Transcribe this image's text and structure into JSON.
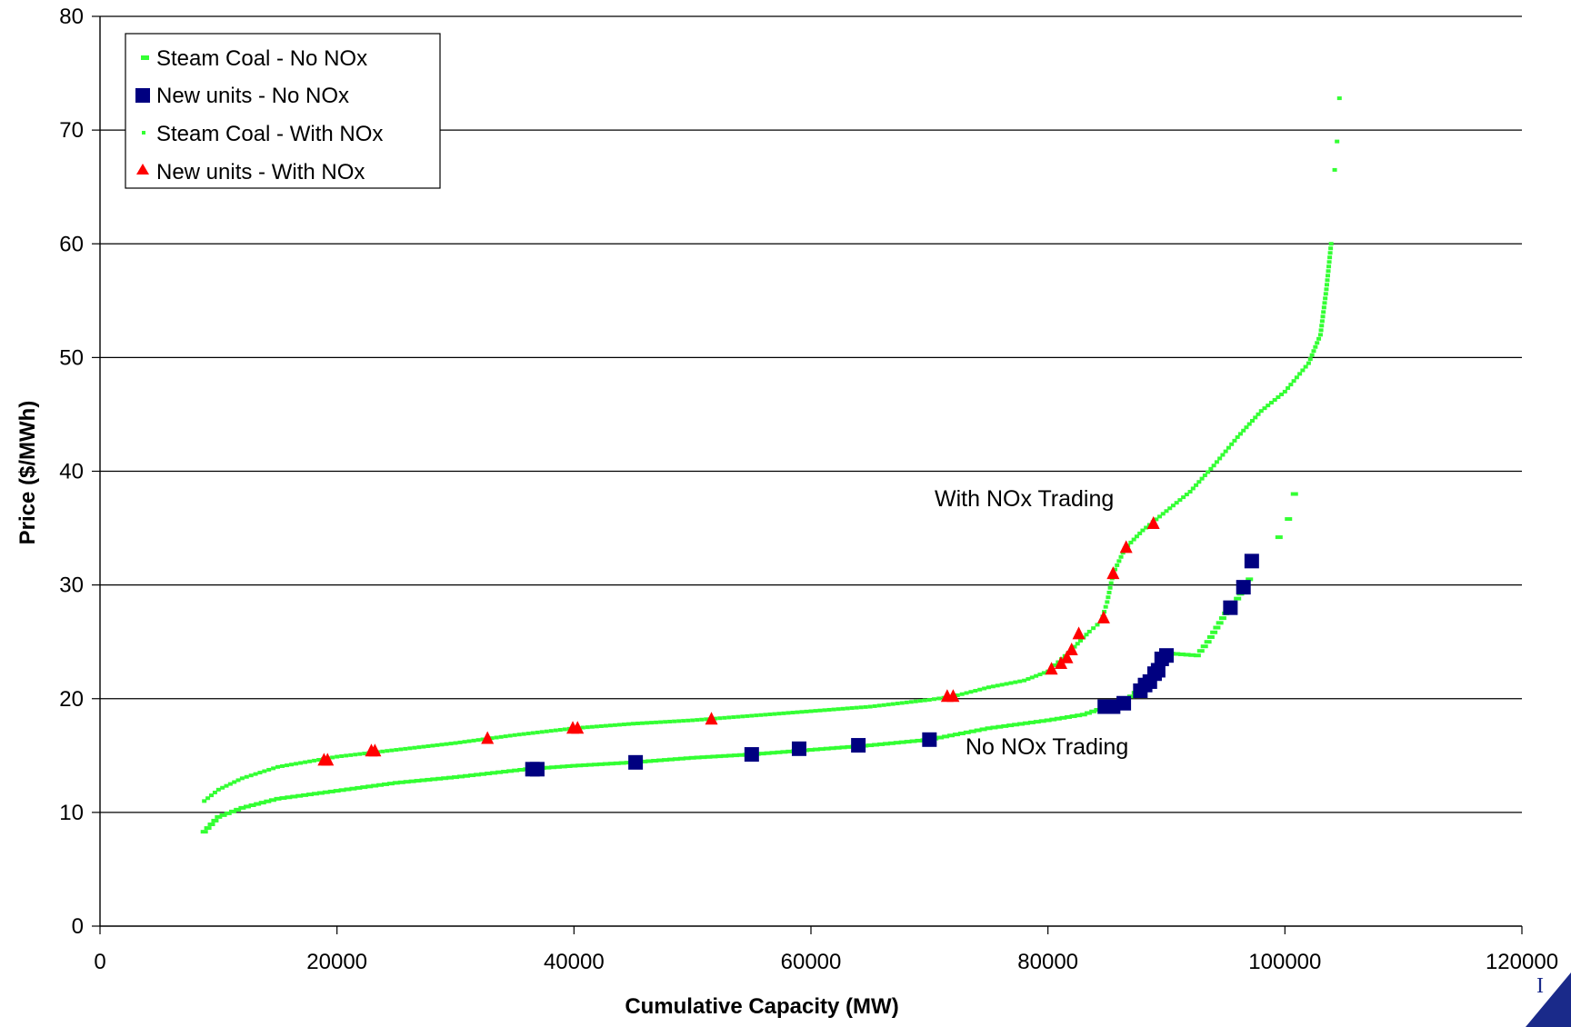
{
  "chart_data": {
    "type": "scatter",
    "title": "",
    "xlabel": "Cumulative Capacity (MW)",
    "ylabel": "Price ($/MWh)",
    "xlim": [
      0,
      120000
    ],
    "ylim": [
      0,
      80
    ],
    "x_ticks": [
      "0",
      "20000",
      "40000",
      "60000",
      "80000",
      "100000",
      "120000"
    ],
    "y_ticks": [
      "0",
      "10",
      "20",
      "30",
      "40",
      "50",
      "60",
      "70",
      "80"
    ],
    "grid": "horizontal",
    "legend_position": "top-left",
    "annotations": [
      {
        "text": "With NOx Trading",
        "x": 79000,
        "y": 37.5
      },
      {
        "text": "No NOx Trading",
        "x": 81000,
        "y": 15.8
      }
    ],
    "series": [
      {
        "name": "Steam Coal - No NOx",
        "marker": "dash",
        "color": "#33ff33",
        "curve": [
          [
            8800,
            8.3
          ],
          [
            10000,
            9.6
          ],
          [
            12000,
            10.4
          ],
          [
            15000,
            11.2
          ],
          [
            20000,
            11.9
          ],
          [
            25000,
            12.6
          ],
          [
            30000,
            13.1
          ],
          [
            36000,
            13.8
          ],
          [
            40000,
            14.1
          ],
          [
            45000,
            14.4
          ],
          [
            50000,
            14.8
          ],
          [
            55000,
            15.1
          ],
          [
            60000,
            15.5
          ],
          [
            65000,
            15.9
          ],
          [
            70000,
            16.4
          ],
          [
            75000,
            17.4
          ],
          [
            80000,
            18.1
          ],
          [
            83000,
            18.6
          ],
          [
            85000,
            19.3
          ],
          [
            87000,
            20.2
          ],
          [
            88500,
            21.5
          ],
          [
            89500,
            23.2
          ],
          [
            90000,
            24.0
          ],
          [
            92600,
            23.8
          ],
          [
            93500,
            25.0
          ],
          [
            95000,
            27.5
          ],
          [
            96000,
            28.8
          ],
          [
            97000,
            30.5
          ]
        ],
        "isolated_points": [
          [
            99500,
            34.2
          ],
          [
            100300,
            35.8
          ],
          [
            100800,
            38.0
          ]
        ]
      },
      {
        "name": "New units - No NOx",
        "marker": "square",
        "color": "#000080",
        "points": [
          [
            36500,
            13.8
          ],
          [
            36900,
            13.8
          ],
          [
            45200,
            14.4
          ],
          [
            55000,
            15.1
          ],
          [
            59000,
            15.6
          ],
          [
            64000,
            15.9
          ],
          [
            70000,
            16.4
          ],
          [
            84800,
            19.3
          ],
          [
            85500,
            19.3
          ],
          [
            86400,
            19.6
          ],
          [
            87800,
            20.7
          ],
          [
            88200,
            21.2
          ],
          [
            88600,
            21.5
          ],
          [
            89000,
            22.2
          ],
          [
            89300,
            22.5
          ],
          [
            89600,
            23.5
          ],
          [
            90000,
            23.8
          ],
          [
            95400,
            28.0
          ],
          [
            96500,
            29.8
          ],
          [
            97200,
            32.1
          ]
        ]
      },
      {
        "name": "Steam Coal - With NOx",
        "marker": "dot",
        "color": "#33ff33",
        "curve": [
          [
            8800,
            11.0
          ],
          [
            10000,
            12.0
          ],
          [
            12000,
            13.0
          ],
          [
            15000,
            14.0
          ],
          [
            20000,
            14.9
          ],
          [
            25000,
            15.5
          ],
          [
            30000,
            16.1
          ],
          [
            35000,
            16.8
          ],
          [
            40000,
            17.4
          ],
          [
            45000,
            17.8
          ],
          [
            50000,
            18.1
          ],
          [
            55000,
            18.5
          ],
          [
            60000,
            18.9
          ],
          [
            65000,
            19.3
          ],
          [
            70000,
            19.9
          ],
          [
            72000,
            20.2
          ],
          [
            75000,
            21.0
          ],
          [
            78000,
            21.6
          ],
          [
            80000,
            22.4
          ],
          [
            82000,
            24.3
          ],
          [
            83500,
            25.9
          ],
          [
            84500,
            26.8
          ],
          [
            85000,
            28.5
          ],
          [
            85500,
            31.0
          ],
          [
            86500,
            33.2
          ],
          [
            88000,
            34.8
          ],
          [
            90000,
            36.5
          ],
          [
            92000,
            38.2
          ],
          [
            94000,
            40.5
          ],
          [
            96000,
            43.0
          ],
          [
            98000,
            45.3
          ],
          [
            100000,
            47.0
          ],
          [
            102000,
            49.5
          ],
          [
            103000,
            52.0
          ],
          [
            103500,
            56.0
          ],
          [
            103900,
            60.0
          ]
        ],
        "isolated_points": [
          [
            104200,
            66.5
          ],
          [
            104400,
            69.0
          ],
          [
            104600,
            72.8
          ]
        ]
      },
      {
        "name": "New units - With NOx",
        "marker": "triangle",
        "color": "#ff0000",
        "points": [
          [
            18900,
            14.6
          ],
          [
            19200,
            14.6
          ],
          [
            22900,
            15.4
          ],
          [
            23200,
            15.4
          ],
          [
            32700,
            16.5
          ],
          [
            39900,
            17.4
          ],
          [
            40300,
            17.4
          ],
          [
            51600,
            18.2
          ],
          [
            71500,
            20.2
          ],
          [
            72000,
            20.2
          ],
          [
            80300,
            22.6
          ],
          [
            81100,
            23.1
          ],
          [
            81600,
            23.6
          ],
          [
            82000,
            24.3
          ],
          [
            82600,
            25.7
          ],
          [
            84700,
            27.1
          ],
          [
            85500,
            31.0
          ],
          [
            86600,
            33.3
          ],
          [
            88900,
            35.4
          ]
        ]
      }
    ]
  }
}
